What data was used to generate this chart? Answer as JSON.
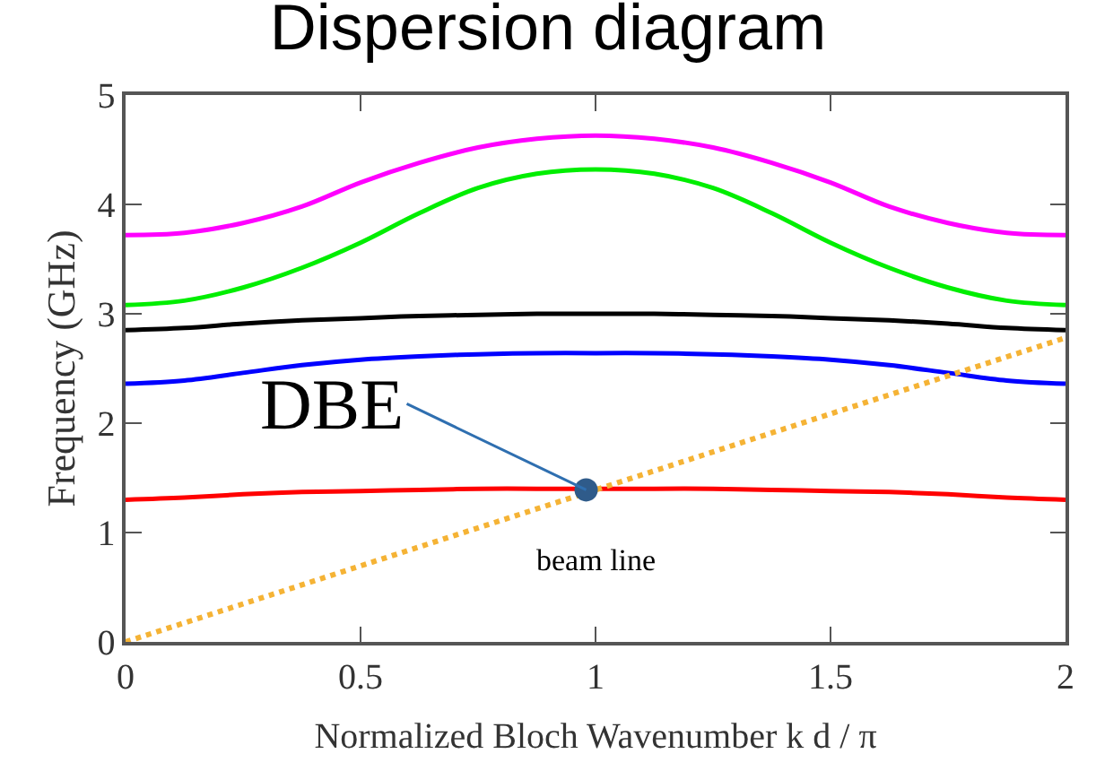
{
  "chart_data": {
    "type": "line",
    "title": "Dispersion diagram",
    "xlabel": "Normalized Bloch Wavenumber k d / π",
    "ylabel": "Frequency (GHz)",
    "x": [
      0,
      0.125,
      0.25,
      0.375,
      0.5,
      0.625,
      0.75,
      0.875,
      1,
      1.125,
      1.25,
      1.375,
      1.5,
      1.625,
      1.75,
      1.875,
      2
    ],
    "series": [
      {
        "color": "#ff00ff",
        "values": [
          3.72,
          3.74,
          3.83,
          3.98,
          4.2,
          4.38,
          4.52,
          4.6,
          4.63,
          4.6,
          4.52,
          4.38,
          4.2,
          3.98,
          3.83,
          3.74,
          3.72
        ]
      },
      {
        "color": "#00ee00",
        "values": [
          3.08,
          3.12,
          3.24,
          3.42,
          3.65,
          3.92,
          4.15,
          4.28,
          4.32,
          4.28,
          4.15,
          3.92,
          3.65,
          3.42,
          3.24,
          3.12,
          3.08
        ]
      },
      {
        "color": "#000000",
        "values": [
          2.85,
          2.87,
          2.91,
          2.94,
          2.96,
          2.98,
          2.99,
          3.0,
          3.0,
          3.0,
          2.99,
          2.98,
          2.96,
          2.94,
          2.91,
          2.87,
          2.85
        ]
      },
      {
        "color": "#0000ff",
        "values": [
          2.36,
          2.39,
          2.46,
          2.53,
          2.58,
          2.61,
          2.63,
          2.64,
          2.64,
          2.64,
          2.63,
          2.61,
          2.58,
          2.53,
          2.46,
          2.39,
          2.36
        ]
      },
      {
        "color": "#ff0000",
        "values": [
          1.3,
          1.32,
          1.35,
          1.37,
          1.38,
          1.39,
          1.4,
          1.4,
          1.4,
          1.4,
          1.4,
          1.39,
          1.38,
          1.37,
          1.35,
          1.32,
          1.3
        ]
      },
      {
        "color": "#f5b335",
        "x": [
          0,
          2
        ],
        "values": [
          0,
          2.78
        ],
        "line_style": "dotted"
      },
      {
        "type": "scatter",
        "color": "#2f5b8a",
        "x": [
          0.98
        ],
        "values": [
          1.39
        ],
        "marker": "circle"
      }
    ],
    "annotations": [
      {
        "text": "DBE",
        "x": 0.98,
        "y": 1.39
      },
      "beam line"
    ],
    "xlim": [
      0,
      2
    ],
    "xticks": [
      0,
      0.5,
      1,
      1.5,
      2
    ],
    "ylim": [
      0,
      5
    ],
    "yticks": [
      0,
      1,
      2,
      3,
      4,
      5
    ],
    "marker": "none"
  }
}
